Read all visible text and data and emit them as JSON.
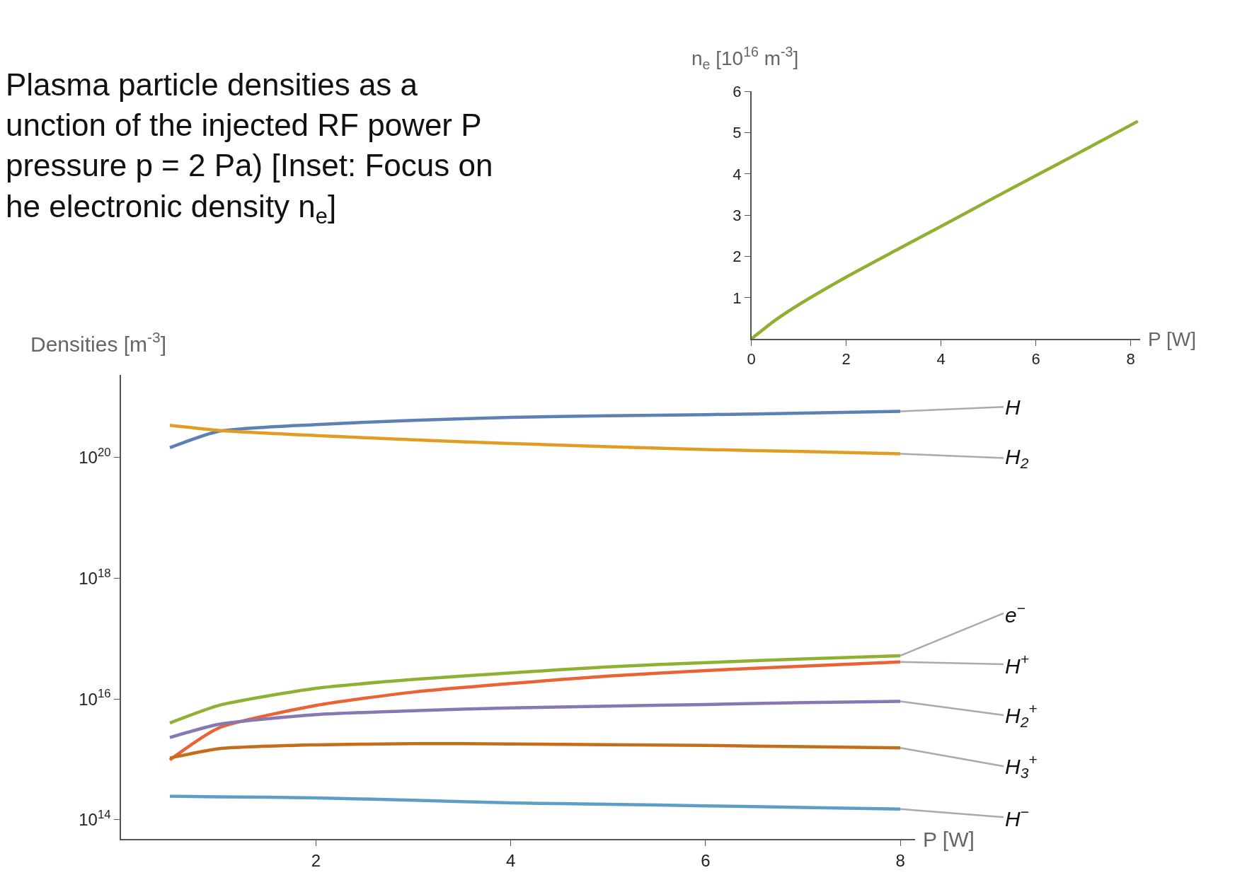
{
  "chart_data": [
    {
      "type": "line",
      "title": "Plasma particle densities as a\nunction of the injected RF power P\npressure p = 2 Pa) [Inset: Focus on\nhe electronic density n$_{e}$]",
      "xlabel": "P [W]",
      "ylabel": "Densities [m$^{-3}$]",
      "log": "y",
      "xlim": [
        0,
        8.15
      ],
      "ylim": [
        48000000000000.0,
        2.3e+21
      ],
      "xticks": [
        2,
        4,
        6,
        8
      ],
      "yticks": [
        {
          "value": 100000000000000.0,
          "label": "10$^{14}$"
        },
        {
          "value": 1e+16,
          "label": "10$^{16}$"
        },
        {
          "value": 1e+18,
          "label": "10$^{18}$"
        },
        {
          "value": 1e+20,
          "label": "10$^{20}$"
        }
      ],
      "x": [
        0.5,
        1,
        2,
        3,
        4,
        5,
        6,
        7,
        8
      ],
      "legend": false,
      "marker": "none",
      "line_style": "solid",
      "series": [
        {
          "name": "H",
          "color": "#5e81b5",
          "values": [
            1.45e+20,
            2.7e+20,
            3.5e+20,
            4.1e+20,
            4.6e+20,
            4.9e+20,
            5.1e+20,
            5.4e+20,
            5.8e+20
          ]
        },
        {
          "name": "H$_{2}$",
          "color": "#e19c24",
          "values": [
            3.4e+20,
            2.8e+20,
            2.3e+20,
            1.95e+20,
            1.7e+20,
            1.5e+20,
            1.35e+20,
            1.25e+20,
            1.15e+20
          ]
        },
        {
          "name": "e$^{−}$",
          "color": "#8fb032",
          "values": [
            4000000000000000.0,
            7800000000000000.0,
            1.5e+16,
            2.1e+16,
            2.7e+16,
            3.4e+16,
            4e+16,
            4.6e+16,
            5.2e+16
          ]
        },
        {
          "name": "H$^{+}$",
          "color": "#eb6235",
          "values": [
            980000000000000.0,
            3300000000000000.0,
            7800000000000000.0,
            1.3e+16,
            1.8e+16,
            2.4e+16,
            2.95e+16,
            3.5e+16,
            4.1e+16
          ]
        },
        {
          "name": "H$_{2}$$^{+}$",
          "color": "#8778b3",
          "values": [
            2300000000000000.0,
            3800000000000000.0,
            5500000000000000.0,
            6400000000000000.0,
            7100000000000000.0,
            7600000000000000.0,
            8100000000000000.0,
            8700000000000000.0,
            9100000000000000.0
          ]
        },
        {
          "name": "H$_{3}$$^{+}$",
          "color": "#c56e1a",
          "values": [
            1050000000000000.0,
            1500000000000000.0,
            1740000000000000.0,
            1820000000000000.0,
            1800000000000000.0,
            1750000000000000.0,
            1700000000000000.0,
            1620000000000000.0,
            1550000000000000.0
          ]
        },
        {
          "name": "H$^{−}$",
          "color": "#5d9ec7",
          "values": [
            245000000000000.0,
            240000000000000.0,
            230000000000000.0,
            210000000000000.0,
            190000000000000.0,
            180000000000000.0,
            170000000000000.0,
            160000000000000.0,
            150000000000000.0
          ]
        }
      ]
    },
    {
      "type": "line",
      "xlabel": "P [W]",
      "ylabel": "n$_{e}$ [10$^{16}$ m$^{-3}$]",
      "xlim": [
        0,
        8.2
      ],
      "ylim": [
        0,
        6
      ],
      "xticks": [
        0,
        2,
        4,
        6,
        8
      ],
      "yticks": [
        1,
        2,
        3,
        4,
        5,
        6
      ],
      "x": [
        0,
        0.5,
        1,
        2,
        3,
        4,
        5,
        6,
        7,
        8.15
      ],
      "legend": false,
      "marker": "none",
      "line_style": "solid",
      "series": [
        {
          "color": "#8fb032",
          "values": [
            0,
            0.45,
            0.83,
            1.5,
            2.12,
            2.73,
            3.35,
            3.96,
            4.57,
            5.28
          ]
        }
      ]
    }
  ]
}
